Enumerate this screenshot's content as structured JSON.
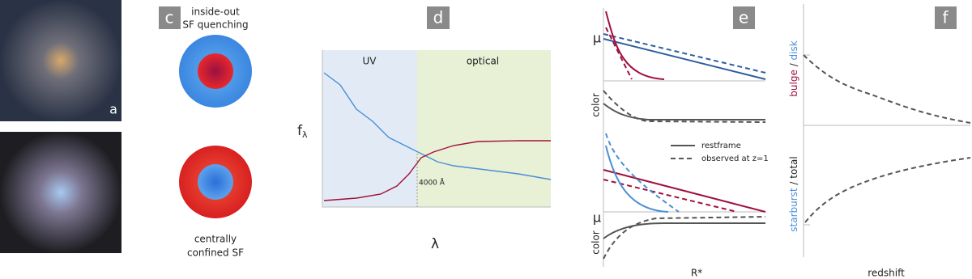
{
  "panels": {
    "a": {
      "label": "a"
    },
    "c": {
      "label": "c",
      "top_caption": [
        "inside-out",
        "SF quenching"
      ],
      "bottom_caption": [
        "centrally",
        "confined SF"
      ]
    },
    "d": {
      "label": "d",
      "region_left": "UV",
      "region_right": "optical",
      "y_label": {
        "text": "f",
        "sub": "λ"
      },
      "x_label": "λ",
      "break_label": "4000 Å"
    },
    "e": {
      "label": "e",
      "mu_label": "μ",
      "color_label": "color",
      "legend": [
        "restframe",
        "observed at z=1"
      ],
      "x_label": "R*"
    },
    "f": {
      "label": "f",
      "top_y_label": [
        "bulge",
        " / ",
        "disk"
      ],
      "bottom_y_label": [
        "starburst",
        " / total"
      ],
      "x_label": "redshift"
    }
  }
}
